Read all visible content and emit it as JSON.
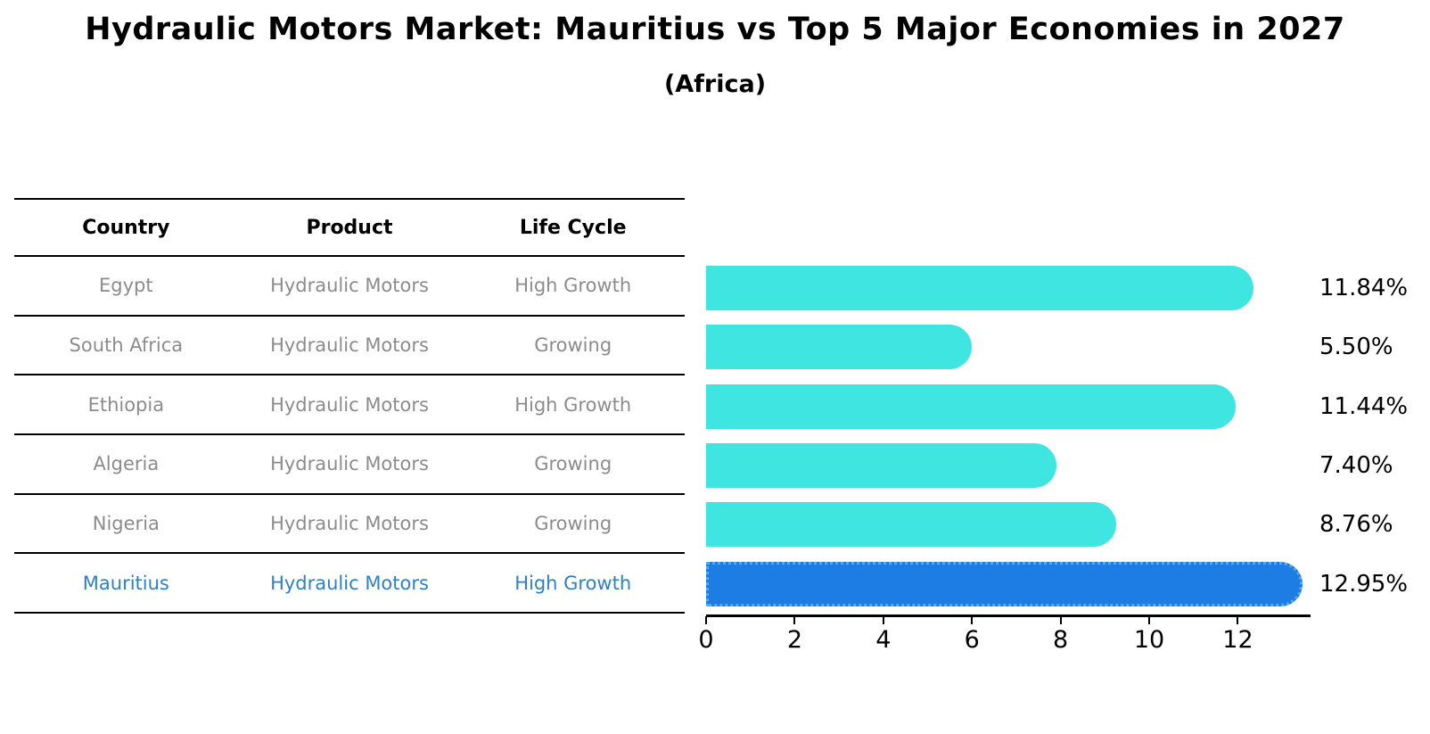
{
  "title": "Hydraulic Motors Market: Mauritius vs Top 5 Major Economies in 2027",
  "subtitle": "(Africa)",
  "table": {
    "headers": [
      "Country",
      "Product",
      "Life Cycle"
    ],
    "rows": [
      {
        "country": "Egypt",
        "product": "Hydraulic Motors",
        "life_cycle": "High Growth",
        "highlight": false
      },
      {
        "country": "South Africa",
        "product": "Hydraulic Motors",
        "life_cycle": "Growing",
        "highlight": false
      },
      {
        "country": "Ethiopia",
        "product": "Hydraulic Motors",
        "life_cycle": "High Growth",
        "highlight": false
      },
      {
        "country": "Algeria",
        "product": "Hydraulic Motors",
        "life_cycle": "Growing",
        "highlight": false
      },
      {
        "country": "Nigeria",
        "product": "Hydraulic Motors",
        "life_cycle": "Growing",
        "highlight": false
      },
      {
        "country": "Mauritius",
        "product": "Hydraulic Motors",
        "life_cycle": "High Growth",
        "highlight": true
      }
    ]
  },
  "chart_data": {
    "type": "bar",
    "orientation": "horizontal",
    "title": "Hydraulic Motors Market: Mauritius vs Top 5 Major Economies in 2027",
    "subtitle": "(Africa)",
    "categories": [
      "Egypt",
      "South Africa",
      "Ethiopia",
      "Algeria",
      "Nigeria",
      "Mauritius"
    ],
    "values": [
      11.84,
      5.5,
      11.44,
      7.4,
      8.76,
      12.95
    ],
    "value_labels": [
      "11.84%",
      "5.50%",
      "11.44%",
      "7.40%",
      "8.76%",
      "12.95%"
    ],
    "highlight_index": 5,
    "xlim": [
      0,
      13.6
    ],
    "xticks": [
      0,
      2,
      4,
      6,
      8,
      10,
      12
    ],
    "grid": false,
    "legend": false,
    "bar_color": "#3fe5e0",
    "highlight_bar_color": "#1e7de5",
    "highlight_border_color": "#58aaee"
  },
  "colors": {
    "background": "#ffffff",
    "table_text_gray": "#8c8c8c",
    "highlight_text_blue": "#2f80c8",
    "line_black": "#000000"
  }
}
